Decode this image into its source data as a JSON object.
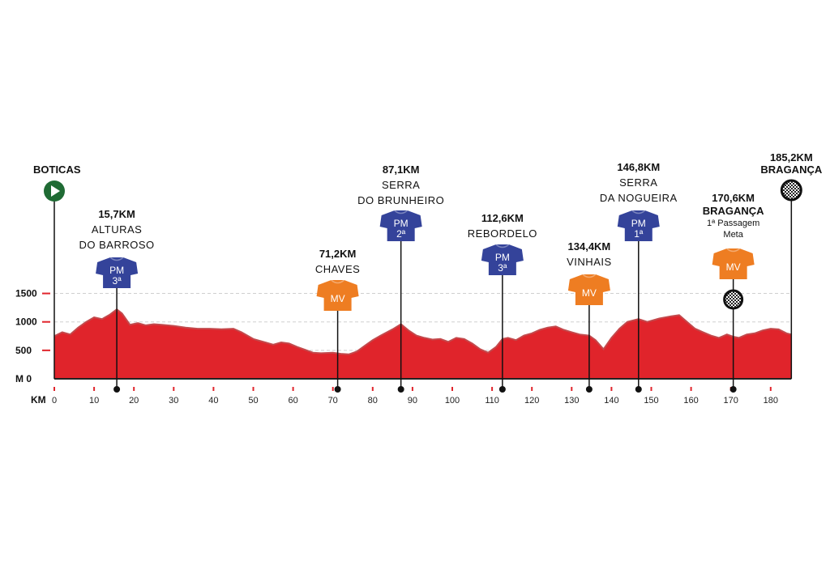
{
  "chart_data": {
    "type": "area",
    "xlabel": "KM",
    "ylabel": "M",
    "xlim": [
      0,
      185.2
    ],
    "ylim": [
      0,
      1500
    ],
    "x_ticks": [
      0,
      10,
      20,
      30,
      40,
      50,
      60,
      70,
      80,
      90,
      100,
      110,
      120,
      130,
      140,
      150,
      160,
      170,
      180
    ],
    "y_ticks": [
      {
        "value": 0,
        "label": "M 0"
      },
      {
        "value": 500,
        "label": "500"
      },
      {
        "value": 1000,
        "label": "1000"
      },
      {
        "value": 1500,
        "label": "1500"
      }
    ],
    "grid": "horizontal dashed",
    "colors": {
      "area": "#e0242b",
      "area_edge": "#c3494c",
      "climb_jersey": "#34439a",
      "sprint_jersey": "#ee7d22",
      "start": "#1f6b34"
    },
    "elevation": {
      "x": [
        0,
        2,
        4,
        6,
        8,
        10,
        12,
        14,
        15.7,
        17,
        19,
        21,
        23,
        25,
        27,
        30,
        33,
        36,
        39,
        42,
        45,
        47,
        50,
        53,
        55,
        57,
        59,
        61,
        63,
        65,
        67,
        70,
        72,
        74,
        76,
        78,
        80,
        82,
        85,
        87.1,
        89,
        91,
        93,
        95,
        97,
        99,
        101,
        103,
        105,
        107,
        109,
        111,
        112.6,
        114,
        116,
        118,
        120,
        122,
        124,
        126,
        128,
        130,
        132,
        134.4,
        136,
        138,
        140,
        142,
        144,
        146.8,
        149,
        152,
        155,
        157,
        159,
        161,
        163,
        165,
        167,
        169,
        170.6,
        172,
        174,
        176,
        178,
        180,
        182,
        184,
        185.2
      ],
      "y": [
        750,
        820,
        780,
        900,
        1000,
        1080,
        1050,
        1130,
        1220,
        1150,
        950,
        980,
        940,
        960,
        950,
        930,
        900,
        880,
        880,
        870,
        880,
        820,
        700,
        640,
        600,
        640,
        620,
        560,
        510,
        460,
        450,
        460,
        440,
        430,
        480,
        580,
        680,
        760,
        870,
        960,
        850,
        760,
        720,
        690,
        700,
        650,
        720,
        700,
        620,
        520,
        460,
        560,
        700,
        720,
        680,
        760,
        800,
        860,
        900,
        920,
        860,
        820,
        780,
        760,
        680,
        520,
        720,
        880,
        1000,
        1050,
        1000,
        1060,
        1100,
        1120,
        1000,
        880,
        820,
        760,
        720,
        780,
        740,
        720,
        780,
        800,
        850,
        880,
        870,
        800,
        780
      ]
    },
    "start": {
      "km": 0,
      "name": "BOTICAS"
    },
    "finish": {
      "km_label": "185,2KM",
      "name": "BRAGANÇA"
    },
    "points": [
      {
        "km": 15.7,
        "type": "PM",
        "cat": "3ª",
        "lines": [
          "15,7KM",
          "ALTURAS",
          "DO BARROSO"
        ]
      },
      {
        "km": 71.2,
        "type": "MV",
        "lines": [
          "71,2KM",
          "CHAVES"
        ]
      },
      {
        "km": 87.1,
        "type": "PM",
        "cat": "2ª",
        "lines": [
          "87,1KM",
          "SERRA",
          "DO BRUNHEIRO"
        ]
      },
      {
        "km": 112.6,
        "type": "PM",
        "cat": "3ª",
        "lines": [
          "112,6KM",
          "REBORDELO"
        ]
      },
      {
        "km": 134.4,
        "type": "MV",
        "lines": [
          "134,4KM",
          "VINHAIS"
        ]
      },
      {
        "km": 146.8,
        "type": "PM",
        "cat": "1ª",
        "lines": [
          "146,8KM",
          "SERRA",
          "DA NOGUEIRA"
        ]
      },
      {
        "km": 170.6,
        "type": "MV",
        "lines": [
          "170,6KM",
          "BRAGANÇA",
          "1ª Passagem",
          "Meta"
        ]
      }
    ]
  }
}
